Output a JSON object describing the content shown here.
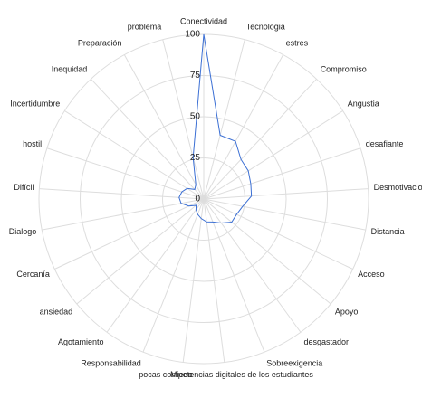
{
  "chart_data": {
    "type": "radar",
    "categories": [
      "Conectividad",
      "Tecnologia",
      "estres",
      "Compromiso",
      "Angustia",
      "desafiante",
      "Desmotivacion",
      "Distancia",
      "Acceso",
      "Apoyo",
      "desgastador",
      "Sobreexigencia",
      "pocas competencias digitales de los estudiantes",
      "Miedo",
      "Responsabilidad",
      "Agotamiento",
      "ansiedad",
      "Cercanía",
      "Dialogo",
      "Difícil",
      "hostil",
      "Incertidumbre",
      "Inequidad",
      "Preparación",
      "problema"
    ],
    "values": [
      100,
      40,
      40,
      33,
      32,
      30,
      29,
      24,
      22,
      22,
      18,
      15,
      14,
      12,
      10,
      8,
      6,
      10,
      14,
      15,
      14,
      12,
      8,
      10,
      26
    ],
    "color": "#3b6fd4",
    "ylim": [
      0,
      100
    ],
    "yticks": [
      0,
      25,
      50,
      75,
      100
    ],
    "grid": true
  }
}
